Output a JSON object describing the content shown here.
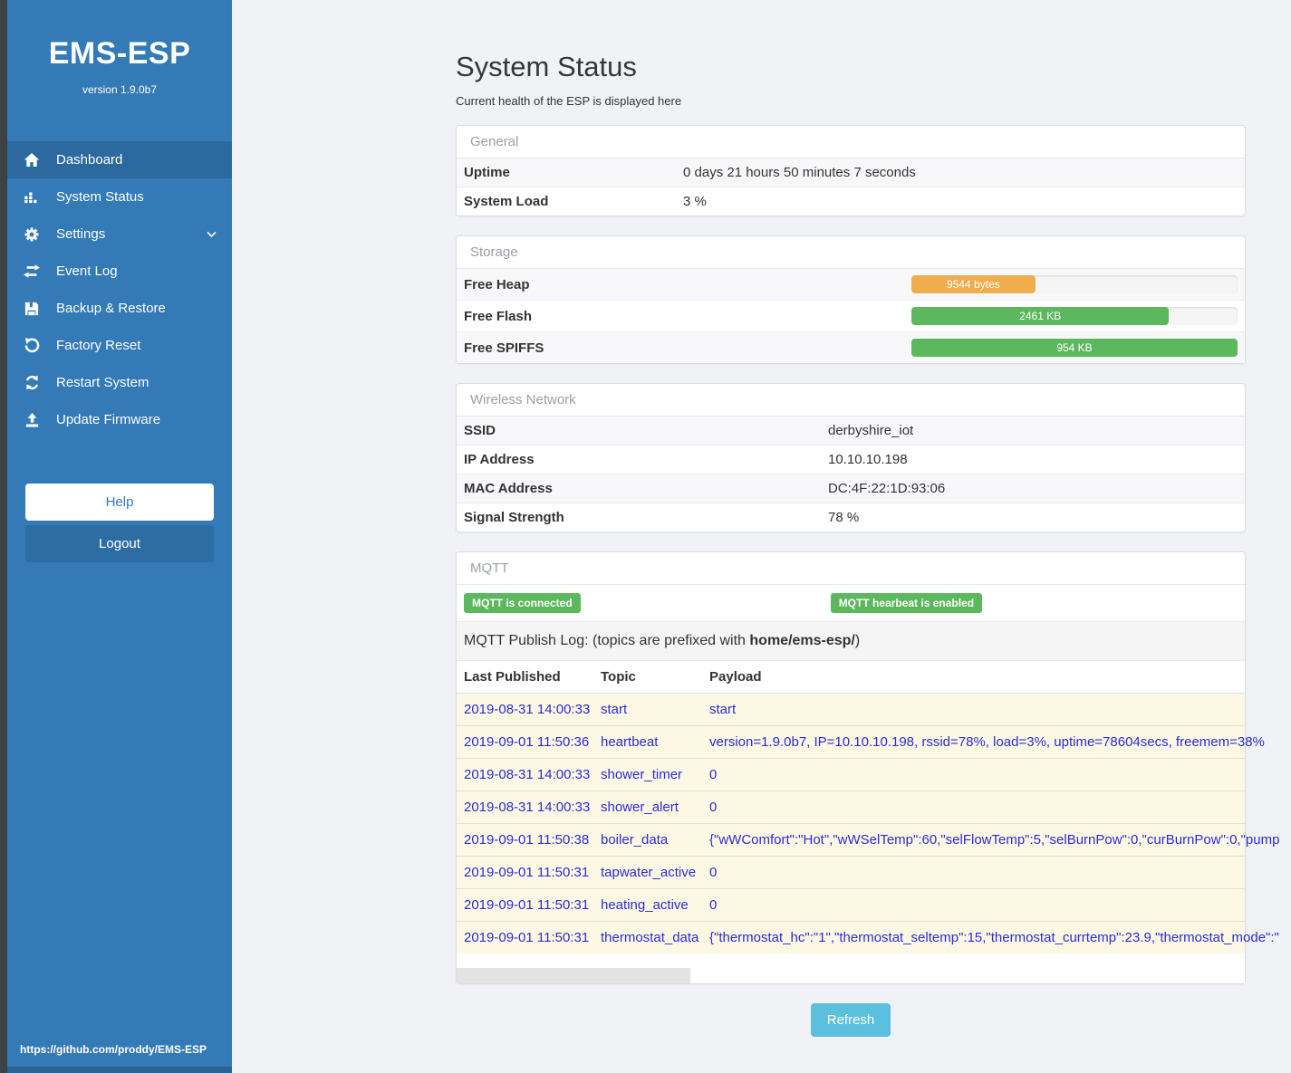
{
  "sidebar": {
    "title": "EMS-ESP",
    "version": "version 1.9.0b7",
    "items": [
      {
        "label": "Dashboard",
        "icon": "home-icon",
        "active": true
      },
      {
        "label": "System Status",
        "icon": "chart-icon",
        "active": false
      },
      {
        "label": "Settings",
        "icon": "gear-icon",
        "active": false,
        "chevron": true
      },
      {
        "label": "Event Log",
        "icon": "exchange-icon",
        "active": false
      },
      {
        "label": "Backup & Restore",
        "icon": "save-icon",
        "active": false
      },
      {
        "label": "Factory Reset",
        "icon": "rotate-left-icon",
        "active": false
      },
      {
        "label": "Restart System",
        "icon": "refresh-icon",
        "active": false
      },
      {
        "label": "Update Firmware",
        "icon": "upload-icon",
        "active": false
      }
    ],
    "help_label": "Help",
    "logout_label": "Logout",
    "footer_link": "https://github.com/proddy/EMS-ESP"
  },
  "main": {
    "title": "System Status",
    "subtitle": "Current health of the ESP is displayed here",
    "general": {
      "heading": "General",
      "rows": [
        {
          "label": "Uptime",
          "value": "0 days 21 hours 50 minutes 7 seconds"
        },
        {
          "label": "System Load",
          "value": "3 %"
        }
      ]
    },
    "storage": {
      "heading": "Storage",
      "rows": [
        {
          "label": "Free Heap",
          "value": "9544 bytes",
          "percent": 38,
          "color": "#f0ad4e"
        },
        {
          "label": "Free Flash",
          "value": "2461 KB",
          "percent": 79,
          "color": "#5cb85c"
        },
        {
          "label": "Free SPIFFS",
          "value": "954 KB",
          "percent": 100,
          "color": "#5cb85c"
        }
      ]
    },
    "wireless": {
      "heading": "Wireless Network",
      "rows": [
        {
          "label": "SSID",
          "value": "derbyshire_iot"
        },
        {
          "label": "IP Address",
          "value": "10.10.10.198"
        },
        {
          "label": "MAC Address",
          "value": "DC:4F:22:1D:93:06"
        },
        {
          "label": "Signal Strength",
          "value": "78 %"
        }
      ]
    },
    "mqtt": {
      "heading": "MQTT",
      "badges": [
        "MQTT is connected",
        "MQTT hearbeat is enabled"
      ],
      "log_prefix_text": "MQTT Publish Log: (topics are prefixed with ",
      "log_prefix_bold": "home/ems-esp/",
      "log_suffix": ")",
      "table": {
        "headers": [
          "Last Published",
          "Topic",
          "Payload"
        ],
        "rows": [
          [
            "2019-08-31 14:00:33",
            "start",
            "start"
          ],
          [
            "2019-09-01 11:50:36",
            "heartbeat",
            "version=1.9.0b7, IP=10.10.10.198, rssid=78%, load=3%, uptime=78604secs, freemem=38%"
          ],
          [
            "2019-08-31 14:00:33",
            "shower_timer",
            "0"
          ],
          [
            "2019-08-31 14:00:33",
            "shower_alert",
            "0"
          ],
          [
            "2019-09-01 11:50:38",
            "boiler_data",
            "{\"wWComfort\":\"Hot\",\"wWSelTemp\":60,\"selFlowTemp\":5,\"selBurnPow\":0,\"curBurnPow\":0,\"pump"
          ],
          [
            "2019-09-01 11:50:31",
            "tapwater_active",
            "0"
          ],
          [
            "2019-09-01 11:50:31",
            "heating_active",
            "0"
          ],
          [
            "2019-09-01 11:50:31",
            "thermostat_data",
            "{\"thermostat_hc\":\"1\",\"thermostat_seltemp\":15,\"thermostat_currtemp\":23.9,\"thermostat_mode\":\""
          ]
        ]
      }
    },
    "refresh_label": "Refresh"
  },
  "colors": {
    "sidebar_blue": "#337ab7",
    "active_item_blue": "#2c699e",
    "success_green": "#5cb85c",
    "warning_orange": "#f0ad4e",
    "refresh_info_blue": "#5bc0de",
    "log_link_blue": "#2b2bd5"
  }
}
